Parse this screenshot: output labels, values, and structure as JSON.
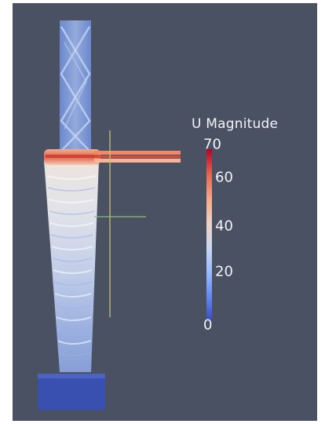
{
  "colorbar": {
    "title": "U Magnitude",
    "ticks": [
      "70",
      "60",
      "40",
      "20",
      "0"
    ],
    "tick_values": [
      70,
      60,
      40,
      20,
      0
    ],
    "range": [
      0,
      70
    ],
    "colormap": "cool-to-warm",
    "colors": [
      "#3b4cc0",
      "#dddddd",
      "#b40426"
    ]
  },
  "scene": {
    "background": "#4a5163",
    "object": "cyclone-streamlines",
    "axes_colors": {
      "x": "#c8c070",
      "y": "#8ec070"
    }
  }
}
